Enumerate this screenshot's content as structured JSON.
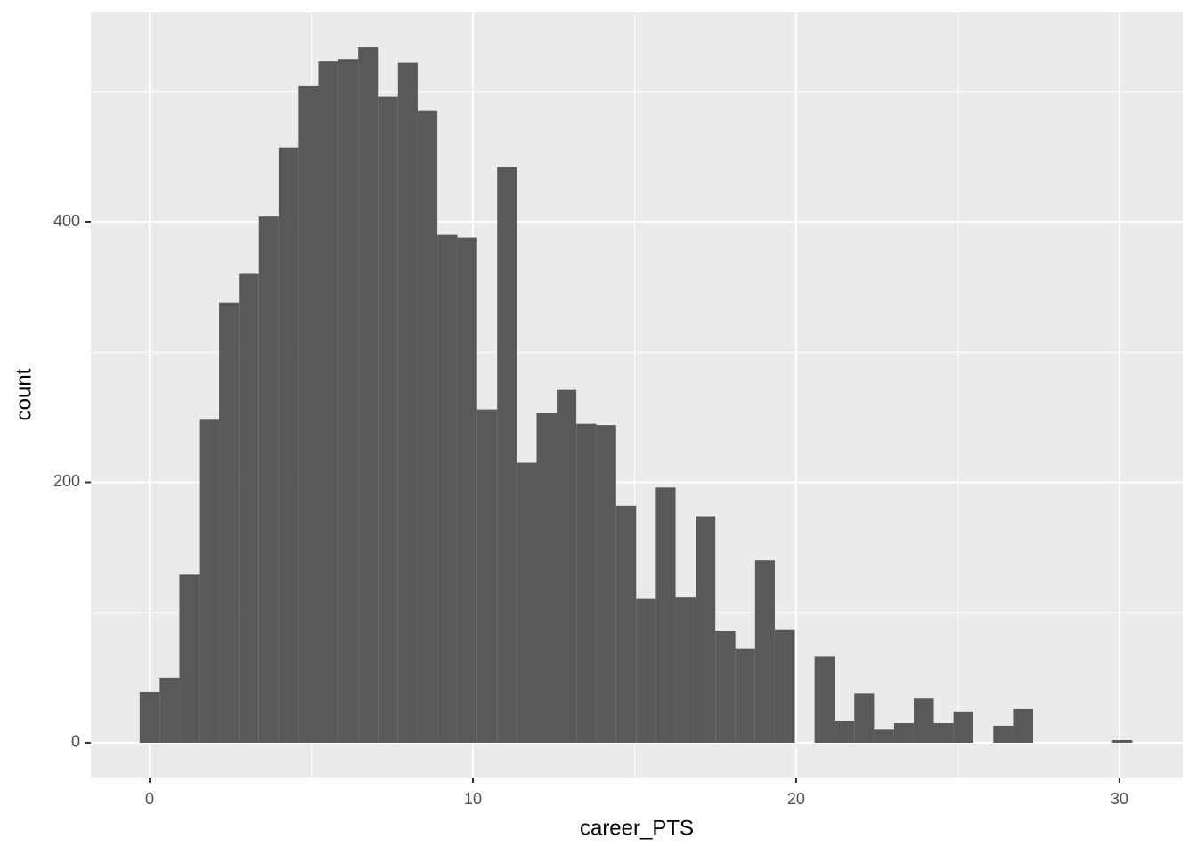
{
  "chart_data": {
    "type": "histogram",
    "x_label": "career_PTS",
    "y_label": "count",
    "bins": [
      -0.31,
      0.31,
      0.92,
      1.53,
      2.15,
      2.76,
      3.38,
      3.99,
      4.61,
      5.22,
      5.83,
      6.45,
      7.06,
      7.68,
      8.29,
      8.9,
      9.52,
      10.13,
      10.75,
      11.36,
      11.97,
      12.59,
      13.2,
      13.82,
      14.43,
      15.05,
      15.66,
      16.27,
      16.89,
      17.5,
      18.12,
      18.73,
      19.34,
      19.96,
      20.57,
      21.19,
      21.8,
      22.41,
      23.03,
      23.64,
      24.26,
      24.87,
      25.48,
      26.1,
      26.71,
      27.33,
      27.94,
      28.56,
      29.17,
      29.78,
      30.4
    ],
    "values": [
      39,
      50,
      129,
      248,
      338,
      360,
      404,
      457,
      504,
      523,
      525,
      534,
      496,
      522,
      485,
      390,
      388,
      256,
      442,
      215,
      253,
      271,
      245,
      244,
      182,
      111,
      196,
      112,
      174,
      86,
      72,
      140,
      87,
      0,
      66,
      17,
      38,
      10,
      15,
      34,
      15,
      24,
      0,
      13,
      26,
      0,
      0,
      0,
      0,
      2
    ],
    "color": "#595959",
    "xlim": [
      -1.82,
      31.96
    ],
    "ylim": [
      -26.7,
      560.7
    ],
    "xticks": [
      0,
      10,
      20,
      30
    ],
    "yticks": [
      0,
      200,
      400
    ],
    "grid": true
  }
}
